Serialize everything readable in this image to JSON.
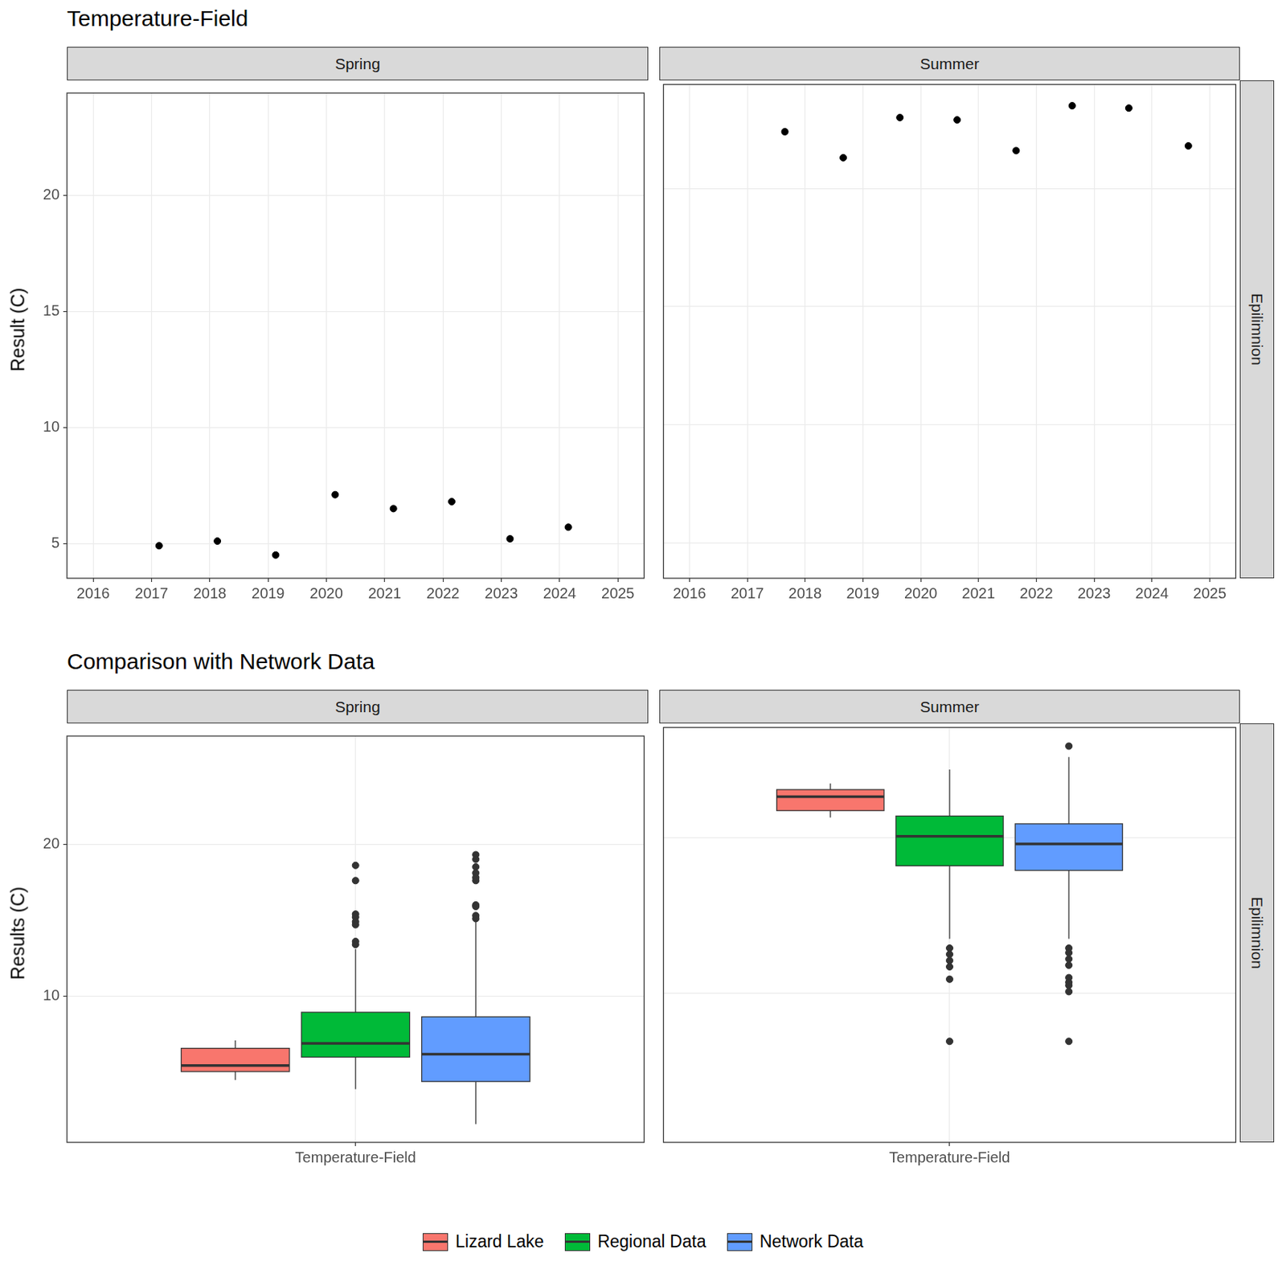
{
  "chart_data": [
    {
      "type": "scatter",
      "title": "Temperature-Field",
      "y_label": "Result (C)",
      "row_label": "Epilimnion",
      "xlim": [
        2015.55,
        2025.45
      ],
      "xticks": [
        2016,
        2017,
        2018,
        2019,
        2020,
        2021,
        2022,
        2023,
        2024,
        2025
      ],
      "ylim": [
        3.5,
        24.4
      ],
      "yticks": [
        5,
        10,
        15,
        20
      ],
      "grid": true,
      "color": "#000000",
      "panels": [
        {
          "facet": "Spring",
          "x": [
            2017.13,
            2018.13,
            2019.13,
            2020.15,
            2021.15,
            2022.15,
            2023.15,
            2024.15
          ],
          "values": [
            4.9,
            5.1,
            4.5,
            7.1,
            6.5,
            6.8,
            5.2,
            5.7
          ]
        },
        {
          "facet": "Summer",
          "x": [
            2017.65,
            2018.66,
            2019.64,
            2020.63,
            2021.65,
            2022.62,
            2023.6,
            2024.63
          ],
          "values": [
            22.4,
            21.3,
            23.0,
            22.9,
            21.6,
            23.5,
            23.4,
            21.8
          ]
        }
      ]
    },
    {
      "type": "box",
      "title": "Comparison with Network Data",
      "y_label": "Results (C)",
      "row_label": "Epilimnion",
      "categories": [
        "Temperature-Field"
      ],
      "ylim": [
        0.4,
        27.1
      ],
      "yticks": [
        10,
        20
      ],
      "grid": true,
      "legend": "bottom",
      "series": [
        {
          "name": "Lizard Lake",
          "color": "#F8766D"
        },
        {
          "name": "Regional Data",
          "color": "#00BA38"
        },
        {
          "name": "Network Data",
          "color": "#619CFF"
        }
      ],
      "panels": [
        {
          "facet": "Spring",
          "boxes": [
            {
              "min": 4.5,
              "q1": 5.05,
              "median": 5.45,
              "q3": 6.58,
              "max": 7.1,
              "outliers": []
            },
            {
              "min": 3.9,
              "q1": 6.0,
              "median": 6.9,
              "q3": 8.95,
              "max": 13.1,
              "outliers": [
                18.6,
                17.6,
                15.4,
                15.2,
                14.9,
                14.7,
                13.6,
                13.4
              ]
            },
            {
              "min": 1.6,
              "q1": 4.4,
              "median": 6.2,
              "q3": 8.65,
              "max": 14.9,
              "outliers": [
                19.3,
                19.0,
                18.5,
                18.1,
                17.8,
                17.6,
                16.0,
                15.9,
                15.3,
                15.1
              ]
            }
          ]
        },
        {
          "facet": "Summer",
          "boxes": [
            {
              "min": 21.3,
              "q1": 21.75,
              "median": 22.65,
              "q3": 23.1,
              "max": 23.5,
              "outliers": []
            },
            {
              "min": 13.5,
              "q1": 18.2,
              "median": 20.1,
              "q3": 21.4,
              "max": 24.4,
              "outliers": [
                12.9,
                12.5,
                12.1,
                11.7,
                10.9,
                6.9
              ]
            },
            {
              "min": 13.5,
              "q1": 17.9,
              "median": 19.6,
              "q3": 20.9,
              "max": 25.2,
              "outliers": [
                25.9,
                12.9,
                12.6,
                12.2,
                11.8,
                11.0,
                10.7,
                10.5,
                10.1,
                6.9
              ]
            }
          ]
        }
      ]
    }
  ]
}
